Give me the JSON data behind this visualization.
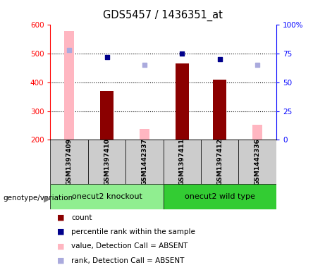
{
  "title": "GDS5457 / 1436351_at",
  "samples": [
    "GSM1397409",
    "GSM1397410",
    "GSM1442337",
    "GSM1397411",
    "GSM1397412",
    "GSM1442336"
  ],
  "group_names": [
    "onecut2 knockout",
    "onecut2 wild type"
  ],
  "count_values": [
    null,
    370,
    null,
    465,
    410,
    null
  ],
  "count_absent": [
    580,
    null,
    237,
    null,
    null,
    253
  ],
  "rank_values": [
    null,
    72,
    null,
    75,
    70,
    null
  ],
  "rank_absent": [
    78,
    null,
    65,
    null,
    null,
    65
  ],
  "ylim_left": [
    200,
    600
  ],
  "ylim_right": [
    0,
    100
  ],
  "yticks_left": [
    200,
    300,
    400,
    500,
    600
  ],
  "yticks_right": [
    0,
    25,
    50,
    75,
    100
  ],
  "right_tick_labels": [
    "0",
    "25",
    "50",
    "75",
    "100%"
  ],
  "dark_red": "#8B0000",
  "light_pink": "#FFB6C1",
  "dark_blue": "#00008B",
  "light_blue": "#AAAADD",
  "legend_items": [
    {
      "label": "count",
      "color": "#8B0000"
    },
    {
      "label": "percentile rank within the sample",
      "color": "#00008B"
    },
    {
      "label": "value, Detection Call = ABSENT",
      "color": "#FFB6C1"
    },
    {
      "label": "rank, Detection Call = ABSENT",
      "color": "#AAAADD"
    }
  ]
}
